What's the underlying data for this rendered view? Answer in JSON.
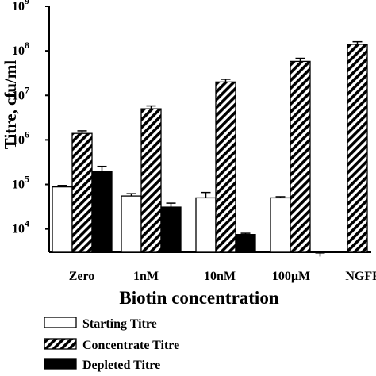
{
  "chart_data": {
    "type": "bar",
    "xlabel": "Biotin concentration",
    "ylabel": "Titre, cfu/ml",
    "y_scale": "log",
    "ylim": [
      3000,
      1000000000
    ],
    "y_ticks": [
      {
        "value": 10000,
        "label": "10",
        "exp": "4"
      },
      {
        "value": 100000,
        "label": "10",
        "exp": "5"
      },
      {
        "value": 1000000,
        "label": "10",
        "exp": "6"
      },
      {
        "value": 10000000,
        "label": "10",
        "exp": "7"
      },
      {
        "value": 100000000,
        "label": "10",
        "exp": "8"
      },
      {
        "value": 1000000000,
        "label": "10",
        "exp": "9"
      }
    ],
    "categories": [
      "Zero",
      "1nM",
      "10nM",
      "100µM",
      "NGFR"
    ],
    "series": [
      {
        "name": "Starting Titre",
        "fill": "white",
        "values": [
          88000,
          55000,
          50000,
          50000,
          null
        ],
        "errors": [
          95000,
          62000,
          66000,
          53000,
          null
        ]
      },
      {
        "name": "Concentrate Titre",
        "fill": "hatch",
        "values": [
          1400000,
          5000000,
          20000000,
          58000000,
          140000000
        ],
        "errors": [
          1600000,
          5800000,
          23000000,
          68000000,
          160000000
        ]
      },
      {
        "name": "Depleted Titre",
        "fill": "black",
        "values": [
          195000,
          31000,
          7500,
          2400,
          null
        ],
        "errors": [
          255000,
          38000,
          8000,
          2900,
          null
        ]
      }
    ],
    "legend_position": "bottom-left",
    "grid": false
  }
}
